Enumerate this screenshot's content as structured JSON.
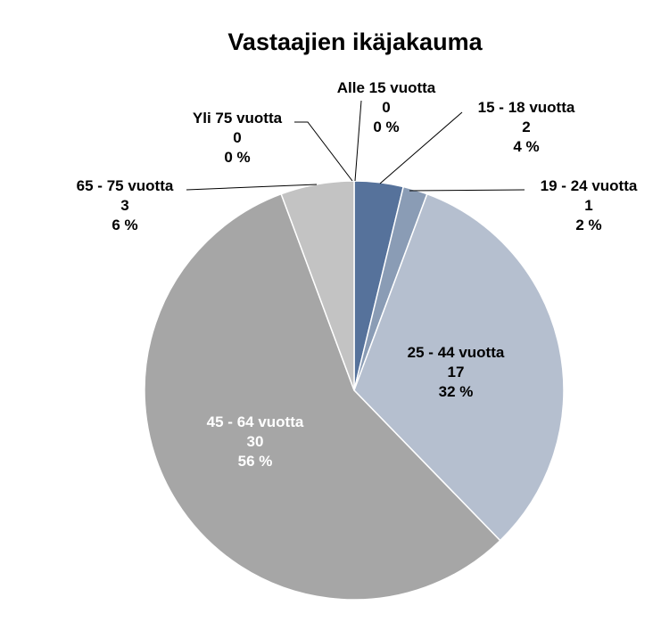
{
  "chart_data": {
    "type": "pie",
    "title": "Vastaajien ikäjakauma",
    "slices": [
      {
        "label": "Alle 15 vuotta",
        "value": 0,
        "percent": "0 %",
        "color": "#4f6d96"
      },
      {
        "label": "15 - 18 vuotta",
        "value": 2,
        "percent": "4 %",
        "color": "#56729b"
      },
      {
        "label": "19 - 24 vuotta",
        "value": 1,
        "percent": "2 %",
        "color": "#8a9cb5"
      },
      {
        "label": "25 - 44 vuotta",
        "value": 17,
        "percent": "32 %",
        "color": "#b5bfcf"
      },
      {
        "label": "45 - 64 vuotta",
        "value": 30,
        "percent": "56 %",
        "color": "#a6a6a6"
      },
      {
        "label": "65 - 75 vuotta",
        "value": 3,
        "percent": "6 %",
        "color": "#c3c3c3"
      },
      {
        "label": "Yli 75 vuotta",
        "value": 0,
        "percent": "0 %",
        "color": "#d9d9d9"
      }
    ],
    "label_content": [
      "category",
      "value",
      "percent"
    ],
    "legend": "none",
    "start_angle": "12 o'clock, clockwise"
  }
}
